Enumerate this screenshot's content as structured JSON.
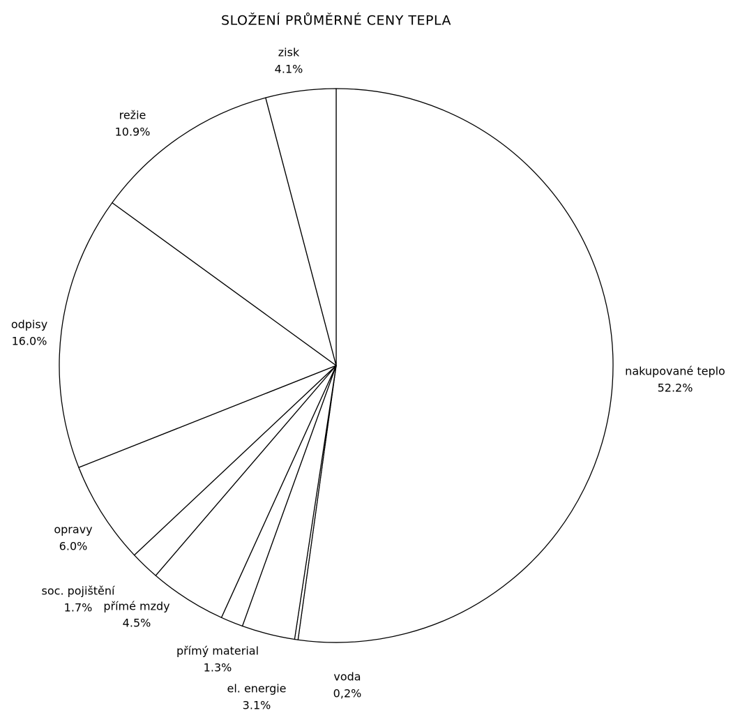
{
  "chart_data": {
    "type": "pie",
    "title": "SLOŽENÍ PRŮMĚRNÉ CENY TEPLA",
    "categories": [
      "nakupované teplo",
      "voda",
      "el. energie",
      "přímý material",
      "přímé mzdy",
      "soc. pojištění",
      "opravy",
      "odpisy",
      "režie",
      "zisk"
    ],
    "values": [
      52.2,
      0.2,
      3.1,
      1.3,
      4.5,
      1.7,
      6.0,
      16.0,
      10.9,
      4.1
    ],
    "value_labels": [
      "52.2%",
      "0,2%",
      "3.1%",
      "1.3%",
      "4.5%",
      "1.7%",
      "6.0%",
      "16.0%",
      "10.9%",
      "4.1%"
    ],
    "color": "#ffffff"
  }
}
